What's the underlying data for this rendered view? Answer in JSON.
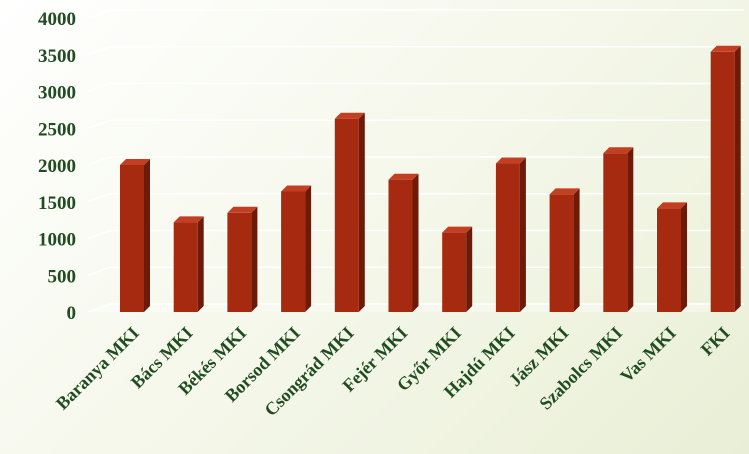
{
  "chart_data": {
    "type": "bar",
    "title": "",
    "xlabel": "",
    "ylabel": "",
    "categories": [
      "Baranya MKI",
      "Bács MKI",
      "Békés MKI",
      "Borsod MKI",
      "Csongrád MKI",
      "Fejér MKI",
      "Győr MKI",
      "Hajdú MKI",
      "Jász MKI",
      "Szabolcs MKI",
      "Vas MKI",
      "FKI"
    ],
    "values": [
      2000,
      1220,
      1350,
      1640,
      2630,
      1800,
      1080,
      2020,
      1600,
      2160,
      1410,
      3540
    ],
    "ylim": [
      0,
      4000
    ],
    "yticks": [
      0,
      500,
      1000,
      1500,
      2000,
      2500,
      3000,
      3500,
      4000
    ],
    "grid": true,
    "legend": "none",
    "colors": {
      "bar_front": "#a52a10",
      "bar_side": "#6e1a08",
      "bar_top": "#c23f22",
      "tick_text": "#1f4d1f",
      "category_text": "#1f4d1f",
      "grid": "#ffffff"
    }
  }
}
